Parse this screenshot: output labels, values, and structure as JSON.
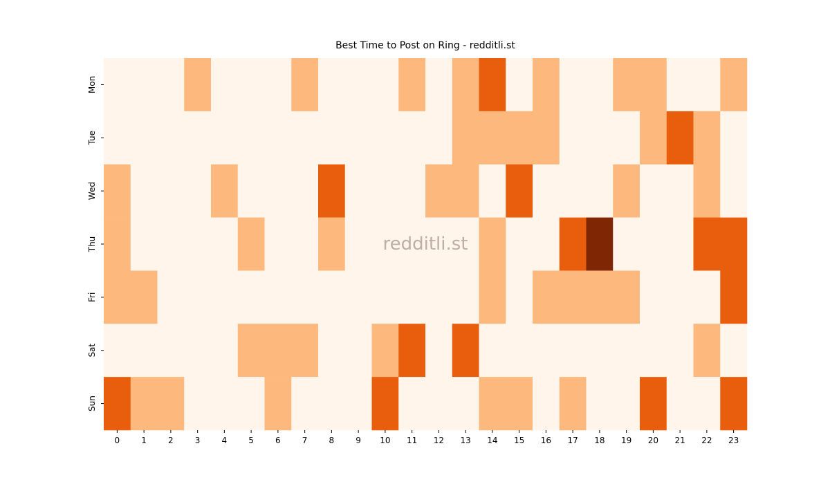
{
  "chart_data": {
    "type": "heatmap",
    "title": "Best Time to Post on Ring - redditli.st",
    "watermark": "redditli.st",
    "x": [
      0,
      1,
      2,
      3,
      4,
      5,
      6,
      7,
      8,
      9,
      10,
      11,
      12,
      13,
      14,
      15,
      16,
      17,
      18,
      19,
      20,
      21,
      22,
      23
    ],
    "y": [
      "Mon",
      "Tue",
      "Wed",
      "Thu",
      "Fri",
      "Sat",
      "Sun"
    ],
    "values": [
      [
        0,
        0,
        0,
        1,
        0,
        0,
        0,
        1,
        0,
        0,
        0,
        1,
        0,
        1,
        2,
        0,
        1,
        0,
        0,
        1,
        1,
        0,
        0,
        1
      ],
      [
        0,
        0,
        0,
        0,
        0,
        0,
        0,
        0,
        0,
        0,
        0,
        0,
        0,
        1,
        1,
        1,
        1,
        0,
        0,
        0,
        1,
        2,
        1,
        0
      ],
      [
        1,
        0,
        0,
        0,
        1,
        0,
        0,
        0,
        2,
        0,
        0,
        0,
        1,
        1,
        0,
        2,
        0,
        0,
        0,
        1,
        0,
        0,
        1,
        0
      ],
      [
        1,
        0,
        0,
        0,
        0,
        1,
        0,
        0,
        1,
        0,
        0,
        0,
        0,
        0,
        1,
        0,
        0,
        2,
        3,
        0,
        0,
        0,
        2,
        2
      ],
      [
        1,
        1,
        0,
        0,
        0,
        0,
        0,
        0,
        0,
        0,
        0,
        0,
        0,
        0,
        1,
        0,
        1,
        1,
        1,
        1,
        0,
        0,
        0,
        2
      ],
      [
        0,
        0,
        0,
        0,
        0,
        1,
        1,
        1,
        0,
        0,
        1,
        2,
        0,
        2,
        0,
        0,
        0,
        0,
        0,
        0,
        0,
        0,
        1,
        0
      ],
      [
        2,
        1,
        1,
        0,
        0,
        0,
        1,
        0,
        0,
        0,
        2,
        0,
        0,
        0,
        1,
        1,
        0,
        1,
        0,
        0,
        2,
        0,
        0,
        2
      ]
    ],
    "zlim": [
      0,
      3
    ],
    "colors": [
      "#fff5eb",
      "#fdb97d",
      "#e95e0d",
      "#7f2704"
    ]
  }
}
